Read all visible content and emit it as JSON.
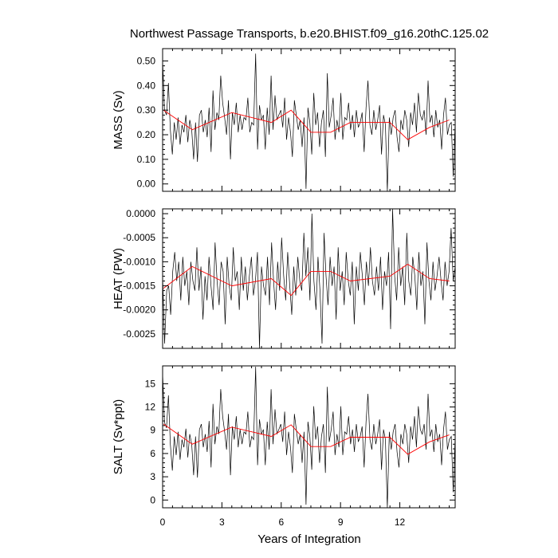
{
  "figure": {
    "title": "Northwest Passage Transports, b.e20.BHIST.f09_g16.20thC.125.02",
    "xlabel": "Years of Integration"
  },
  "colors": {
    "series_line": "#000000",
    "smoothed_line": "#ff0000",
    "axes": "#000000",
    "background": "#ffffff"
  },
  "chart_data": [
    {
      "type": "line",
      "ylabel": "MASS (Sv)",
      "xlim": [
        0,
        14.8
      ],
      "ylim": [
        -0.03,
        0.55
      ],
      "xticks": [
        0,
        3,
        6,
        9,
        12
      ],
      "xtick_labels": [
        "0",
        "3",
        "6",
        "9",
        "12"
      ],
      "yticks": [
        0.0,
        0.1,
        0.2,
        0.3,
        0.4,
        0.5
      ],
      "ytick_labels": [
        "0.00",
        "0.10",
        "0.20",
        "0.30",
        "0.40",
        "0.50"
      ],
      "series": [
        {
          "y": [
            0.5,
            0.3,
            0.28,
            0.41,
            0.22,
            0.12,
            0.25,
            0.18,
            0.27,
            0.16,
            0.24,
            0.21,
            0.28,
            0.17,
            0.26,
            0.22,
            0.1,
            0.25,
            0.09,
            0.28,
            0.3,
            0.21,
            0.26,
            0.19,
            0.31,
            0.13,
            0.38,
            0.22,
            0.29,
            0.26,
            0.44,
            0.33,
            0.27,
            0.2,
            0.34,
            0.1,
            0.29,
            0.24,
            0.33,
            0.21,
            0.28,
            0.22,
            0.27,
            0.26,
            0.35,
            0.21,
            0.25,
            0.24,
            0.53,
            0.14,
            0.32,
            0.26,
            0.28,
            0.14,
            0.31,
            0.2,
            0.44,
            0.22,
            0.36,
            0.26,
            0.28,
            0.3,
            0.23,
            0.35,
            0.18,
            0.27,
            0.21,
            0.11,
            0.34,
            0.28,
            0.22,
            0.26,
            0.15,
            0.27,
            -0.02,
            0.31,
            0.25,
            0.12,
            0.37,
            0.24,
            0.29,
            0.15,
            0.25,
            0.3,
            0.11,
            0.45,
            0.23,
            0.28,
            0.35,
            0.18,
            0.26,
            0.21,
            0.37,
            0.18,
            0.27,
            0.26,
            0.33,
            0.22,
            0.28,
            0.19,
            0.3,
            0.23,
            0.25,
            0.29,
            0.13,
            0.31,
            0.42,
            0.24,
            0.2,
            0.3,
            0.22,
            0.26,
            0.32,
            0.12,
            0.28,
            0.24,
            -0.03,
            0.27,
            0.2,
            0.27,
            0.3,
            0.19,
            0.13,
            0.26,
            0.22,
            0.3,
            0.26,
            0.15,
            0.29,
            0.24,
            0.33,
            0.21,
            0.37,
            0.28,
            0.26,
            0.3,
            0.2,
            0.42,
            0.25,
            0.28,
            0.19,
            0.3,
            0.23,
            0.26,
            0.14,
            0.28,
            0.35,
            0.2,
            0.24,
            0.25,
            0.03,
            0.25
          ]
        },
        {
          "x": [
            0.05,
            1.5,
            3.5,
            5.5,
            6.5,
            7.5,
            8.5,
            9.5,
            11.5,
            12.4,
            13.5,
            14.5
          ],
          "y": [
            0.3,
            0.22,
            0.29,
            0.25,
            0.3,
            0.21,
            0.21,
            0.25,
            0.25,
            0.18,
            0.23,
            0.26
          ]
        }
      ]
    },
    {
      "type": "line",
      "ylabel": "HEAT (PW)",
      "xlim": [
        0,
        14.8
      ],
      "ylim": [
        -0.0028,
        0.0001
      ],
      "xticks": [
        0,
        3,
        6,
        9,
        12
      ],
      "xtick_labels": [
        "0",
        "3",
        "6",
        "9",
        "12"
      ],
      "yticks": [
        0.0,
        -0.0005,
        -0.001,
        -0.0015,
        -0.002,
        -0.0025
      ],
      "ytick_labels": [
        "0.0000",
        "-0.0005",
        "-0.0010",
        "-0.0015",
        "-0.0020",
        "-0.0025"
      ],
      "series": [
        {
          "y": [
            -0.0013,
            -0.0027,
            -0.0016,
            -0.0015,
            -0.0021,
            -0.0012,
            -0.0008,
            -0.0014,
            -0.001,
            -0.0018,
            -0.0009,
            -0.0015,
            -0.0012,
            -0.0019,
            -0.001,
            -0.0014,
            -0.0016,
            -0.0007,
            -0.0016,
            -0.0011,
            -0.0022,
            -0.0013,
            -0.0018,
            -0.0009,
            -0.0015,
            -0.002,
            -0.0006,
            -0.0014,
            -0.0019,
            -0.001,
            -0.0012,
            -0.0023,
            -0.0009,
            -0.0015,
            -0.0018,
            -0.0007,
            -0.0014,
            -0.0012,
            -0.002,
            -0.0009,
            -0.0016,
            -0.0011,
            -0.0018,
            -0.0013,
            -0.0009,
            -0.0017,
            -0.0014,
            -0.0008,
            -0.0028,
            -0.0011,
            -0.0015,
            -0.0017,
            -0.0009,
            -0.0019,
            -0.0006,
            -0.0014,
            -0.002,
            -0.001,
            -0.0016,
            -0.0005,
            -0.0013,
            -0.0018,
            -0.0008,
            -0.0015,
            -0.0021,
            -0.0011,
            -0.0017,
            -0.0009,
            -0.0014,
            -0.0016,
            -0.0004,
            -0.0013,
            -0.0007,
            -0.0018,
            0.0,
            -0.0014,
            -0.002,
            -0.0009,
            -0.0016,
            -0.0027,
            -0.0004,
            -0.0013,
            -0.0019,
            -0.0009,
            -0.0015,
            -0.0011,
            -0.0022,
            -0.0007,
            -0.0016,
            -0.0012,
            -0.0019,
            -0.0008,
            -0.0014,
            -0.0017,
            -0.001,
            -0.0023,
            -0.0011,
            -0.0016,
            -0.0008,
            -0.0013,
            -0.0019,
            -0.001,
            -0.0015,
            -0.0007,
            -0.0014,
            -0.0017,
            -0.0011,
            -0.0016,
            -0.0009,
            -0.002,
            -0.0012,
            -0.0015,
            -0.0008,
            -0.0024,
            0.0001,
            -0.0013,
            -0.0018,
            -0.0007,
            -0.0015,
            -0.0011,
            -0.0019,
            -0.0004,
            -0.0014,
            -0.0017,
            -0.0009,
            -0.0013,
            -0.002,
            -0.0008,
            -0.0015,
            -0.0012,
            -0.0023,
            -0.0006,
            -0.0014,
            -0.0018,
            -0.001,
            -0.0016,
            -0.0013,
            -0.0009,
            -0.0014,
            -0.0018,
            -0.001,
            -0.0015,
            -0.0012,
            -0.0003,
            -0.0014,
            -0.0011
          ]
        },
        {
          "x": [
            0.05,
            1.5,
            3.5,
            5.5,
            6.5,
            7.5,
            8.5,
            9.5,
            11.5,
            12.4,
            13.5,
            14.5
          ],
          "y": [
            -0.00155,
            -0.0011,
            -0.0015,
            -0.00135,
            -0.0017,
            -0.0012,
            -0.0012,
            -0.0014,
            -0.0013,
            -0.00105,
            -0.00135,
            -0.0014
          ]
        }
      ]
    },
    {
      "type": "line",
      "ylabel": "SALT (Sv*ppt)",
      "xlim": [
        0,
        14.8
      ],
      "ylim": [
        -1,
        17.3
      ],
      "xticks": [
        0,
        3,
        6,
        9,
        12
      ],
      "xtick_labels": [
        "0",
        "3",
        "6",
        "9",
        "12"
      ],
      "yticks": [
        0,
        3,
        6,
        9,
        12,
        15
      ],
      "ytick_labels": [
        "0",
        "3",
        "6",
        "9",
        "12",
        "15"
      ],
      "series": [
        {
          "y": [
            16.3,
            10.0,
            9.3,
            13.5,
            7.2,
            3.8,
            8.2,
            5.8,
            8.8,
            5.2,
            7.8,
            6.8,
            9.2,
            5.5,
            8.5,
            7.2,
            3.2,
            8.2,
            2.9,
            9.1,
            9.8,
            6.8,
            8.5,
            6.2,
            10.2,
            4.2,
            12.4,
            7.2,
            9.5,
            8.5,
            14.3,
            10.8,
            8.8,
            6.5,
            11.1,
            3.2,
            9.5,
            7.8,
            10.8,
            6.8,
            9.1,
            7.2,
            8.8,
            8.5,
            11.4,
            6.8,
            8.2,
            7.8,
            17.2,
            4.5,
            10.4,
            8.5,
            9.1,
            4.5,
            10.1,
            6.5,
            14.3,
            7.2,
            11.7,
            8.5,
            9.1,
            9.8,
            7.5,
            11.4,
            5.8,
            8.8,
            6.8,
            3.5,
            11.1,
            9.1,
            7.2,
            8.5,
            4.8,
            8.8,
            -0.6,
            10.1,
            8.2,
            3.9,
            12.1,
            7.8,
            9.5,
            4.8,
            8.2,
            9.8,
            3.5,
            14.6,
            7.5,
            9.1,
            11.4,
            5.8,
            8.5,
            6.8,
            12.1,
            5.8,
            8.8,
            8.5,
            10.8,
            7.2,
            9.1,
            6.2,
            9.8,
            7.5,
            8.2,
            9.5,
            4.2,
            10.1,
            13.7,
            7.8,
            6.5,
            9.8,
            7.2,
            8.5,
            10.4,
            3.9,
            9.1,
            7.8,
            -1.0,
            8.8,
            6.5,
            8.8,
            9.8,
            6.2,
            4.2,
            8.5,
            7.2,
            9.8,
            8.5,
            4.8,
            9.5,
            7.8,
            10.8,
            6.8,
            12.1,
            9.1,
            8.5,
            9.8,
            6.5,
            13.7,
            8.2,
            9.1,
            6.2,
            9.8,
            7.5,
            8.5,
            4.5,
            9.1,
            11.4,
            6.5,
            7.8,
            8.2,
            1.0,
            8.2
          ]
        },
        {
          "x": [
            0.05,
            1.5,
            3.5,
            5.5,
            6.5,
            7.5,
            8.5,
            9.5,
            11.5,
            12.4,
            13.5,
            14.5
          ],
          "y": [
            9.8,
            7.2,
            9.4,
            8.2,
            9.7,
            6.9,
            6.9,
            8.1,
            8.1,
            5.9,
            7.5,
            8.4
          ]
        }
      ]
    }
  ]
}
